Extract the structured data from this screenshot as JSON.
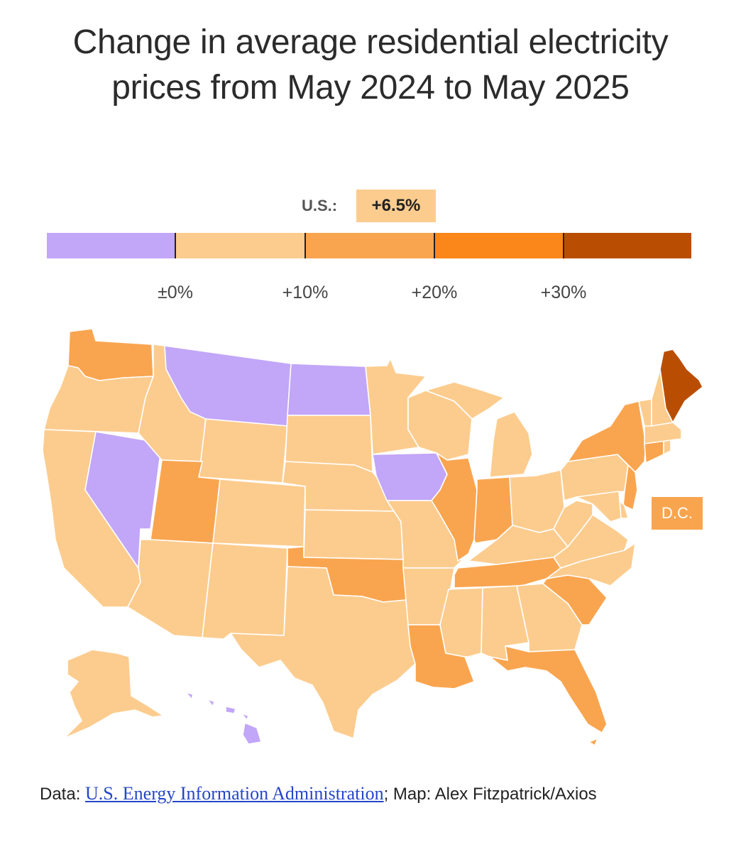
{
  "title": "Change in average residential electricity prices from May 2024 to May 2025",
  "us": {
    "label": "U.S.:",
    "value": "+6.5%"
  },
  "legend": {
    "colors": [
      "#c2a6f8",
      "#fccc8e",
      "#f9a54f",
      "#fb861a",
      "#b94e02"
    ],
    "ticks": [
      "±0%",
      "+10%",
      "+20%",
      "+30%"
    ]
  },
  "dc": {
    "label": "D.C.",
    "color": "#f9a54f"
  },
  "credit": {
    "data_prefix": "Data: ",
    "source_link": "U.S. Energy Information Administration",
    "map_text": "; Map: Alex Fitzpatrick/Axios"
  },
  "states": {
    "WA": "#f9a54f",
    "OR": "#fccc8e",
    "CA": "#fccc8e",
    "NV": "#c2a6f8",
    "ID": "#fccc8e",
    "MT": "#c2a6f8",
    "WY": "#fccc8e",
    "UT": "#f9a54f",
    "AZ": "#fccc8e",
    "CO": "#fccc8e",
    "NM": "#fccc8e",
    "ND": "#c2a6f8",
    "SD": "#fccc8e",
    "NE": "#fccc8e",
    "KS": "#fccc8e",
    "OK": "#f9a54f",
    "TX": "#fccc8e",
    "MN": "#fccc8e",
    "IA": "#c2a6f8",
    "MO": "#fccc8e",
    "AR": "#fccc8e",
    "LA": "#f9a54f",
    "WI": "#fccc8e",
    "IL": "#f9a54f",
    "MI": "#fccc8e",
    "IN": "#f9a54f",
    "OH": "#fccc8e",
    "KY": "#fccc8e",
    "TN": "#f9a54f",
    "MS": "#fccc8e",
    "AL": "#fccc8e",
    "GA": "#fccc8e",
    "FL": "#f9a54f",
    "SC": "#f9a54f",
    "NC": "#fccc8e",
    "VA": "#fccc8e",
    "WV": "#fccc8e",
    "PA": "#fccc8e",
    "NY": "#f9a54f",
    "NJ": "#f9a54f",
    "DE": "#fccc8e",
    "MD": "#fccc8e",
    "CT": "#f9a54f",
    "RI": "#fccc8e",
    "MA": "#fccc8e",
    "VT": "#fccc8e",
    "NH": "#fccc8e",
    "ME": "#b94e02",
    "AK": "#fccc8e",
    "HI": "#c2a6f8"
  }
}
